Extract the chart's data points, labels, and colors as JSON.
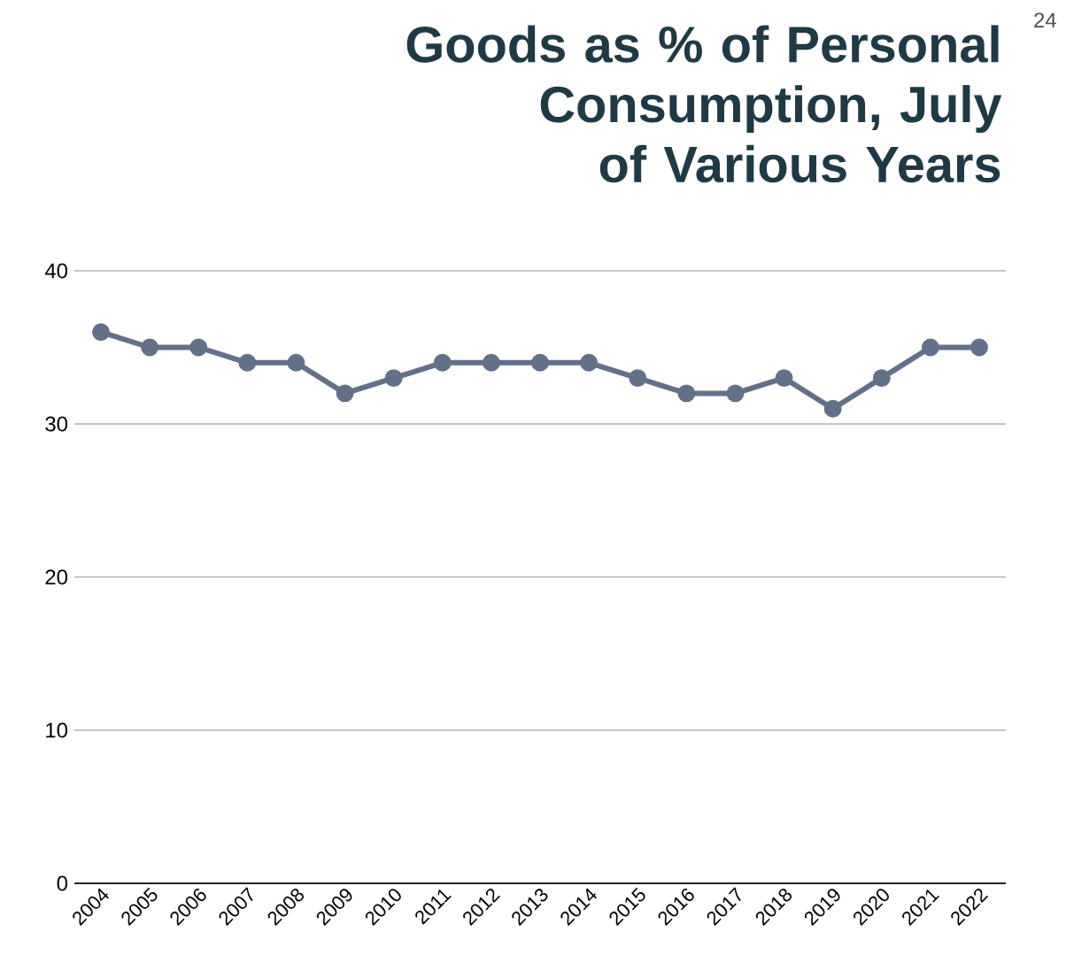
{
  "chart_data": {
    "type": "line",
    "title": "Goods as % of Personal Consumption, July of Various Years",
    "annotations": [
      "24"
    ],
    "categories": [
      "2004",
      "2005",
      "2006",
      "2007",
      "2008",
      "2009",
      "2010",
      "2011",
      "2012",
      "2013",
      "2014",
      "2015",
      "2016",
      "2017",
      "2018",
      "2019",
      "2020",
      "2021",
      "2022"
    ],
    "series": [
      {
        "color": "#637089",
        "values": [
          36,
          35,
          35,
          34,
          34,
          32,
          33,
          34,
          34,
          34,
          34,
          33,
          32,
          32,
          33,
          31,
          33,
          35,
          35
        ]
      }
    ],
    "ylim": [
      0,
      40
    ],
    "yticks": [
      0,
      10,
      20,
      30,
      40
    ],
    "grid": "y",
    "marker": "circle",
    "line_style": "solid"
  }
}
